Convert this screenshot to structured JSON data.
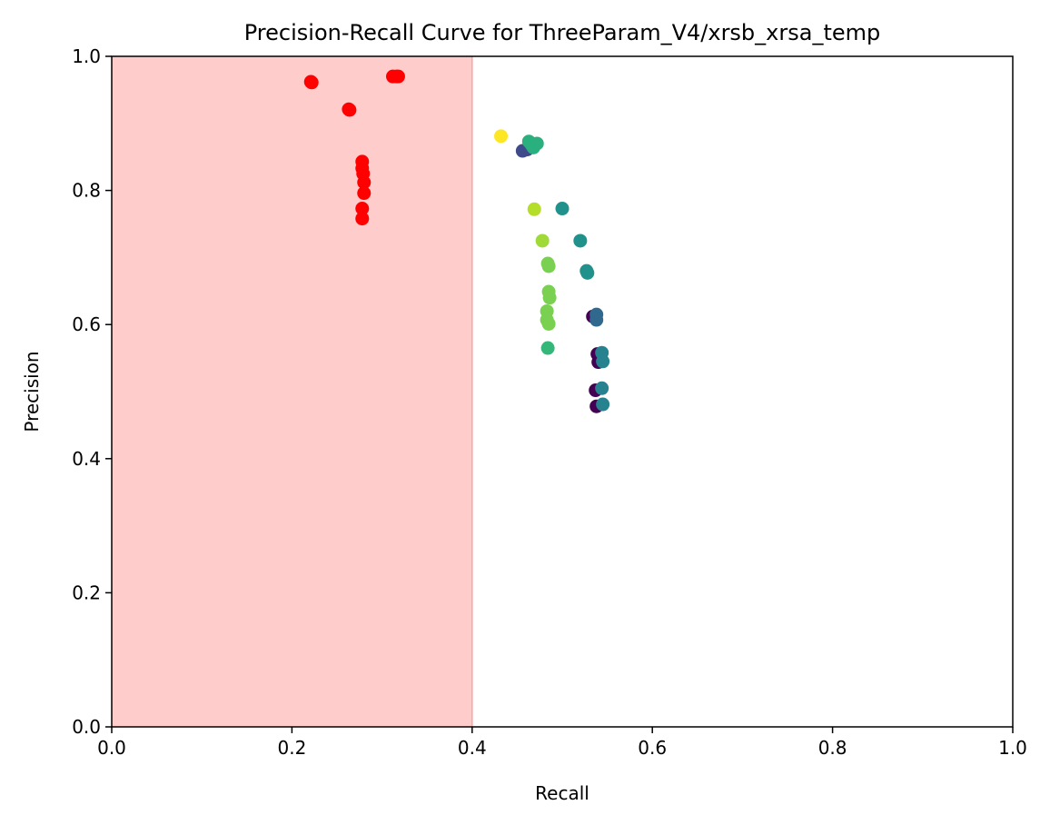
{
  "chart_data": {
    "type": "scatter",
    "title": "Precision-Recall Curve for ThreeParam_V4/xrsb_xrsa_temp",
    "xlabel": "Recall",
    "ylabel": "Precision",
    "xlim": [
      0.0,
      1.0
    ],
    "ylim": [
      0.0,
      1.0
    ],
    "xticks": [
      "0.0",
      "0.2",
      "0.4",
      "0.6",
      "0.8",
      "1.0"
    ],
    "yticks": [
      "0.0",
      "0.2",
      "0.4",
      "0.6",
      "0.8",
      "1.0"
    ],
    "grid": false,
    "shaded_region": {
      "x": [
        0.0,
        0.4
      ],
      "color": "#ffcccc",
      "edge_color": "#f4a6a6"
    },
    "series": [
      {
        "color": "#ff0000",
        "points": [
          [
            0.221,
            0.962
          ],
          [
            0.222,
            0.961
          ],
          [
            0.263,
            0.921
          ],
          [
            0.264,
            0.92
          ],
          [
            0.312,
            0.97
          ],
          [
            0.316,
            0.97
          ],
          [
            0.318,
            0.97
          ],
          [
            0.278,
            0.843
          ],
          [
            0.278,
            0.833
          ],
          [
            0.279,
            0.825
          ],
          [
            0.28,
            0.812
          ],
          [
            0.28,
            0.796
          ],
          [
            0.278,
            0.773
          ],
          [
            0.278,
            0.758
          ]
        ]
      },
      {
        "color": "#fde725",
        "points": [
          [
            0.432,
            0.881
          ]
        ]
      },
      {
        "color": "#3e4a89",
        "points": [
          [
            0.456,
            0.859
          ],
          [
            0.461,
            0.861
          ]
        ]
      },
      {
        "color": "#2ab07f",
        "points": [
          [
            0.463,
            0.873
          ],
          [
            0.468,
            0.864
          ],
          [
            0.472,
            0.87
          ],
          [
            0.466,
            0.868
          ]
        ]
      },
      {
        "color": "#b5de2b",
        "points": [
          [
            0.469,
            0.772
          ]
        ]
      },
      {
        "color": "#21918c",
        "points": [
          [
            0.5,
            0.773
          ],
          [
            0.52,
            0.725
          ],
          [
            0.527,
            0.68
          ],
          [
            0.528,
            0.677
          ]
        ]
      },
      {
        "color": "#a0da39",
        "points": [
          [
            0.478,
            0.725
          ]
        ]
      },
      {
        "color": "#7ad151",
        "points": [
          [
            0.484,
            0.691
          ],
          [
            0.485,
            0.687
          ],
          [
            0.485,
            0.649
          ],
          [
            0.486,
            0.64
          ],
          [
            0.483,
            0.62
          ],
          [
            0.483,
            0.607
          ],
          [
            0.485,
            0.601
          ]
        ]
      },
      {
        "color": "#35b779",
        "points": [
          [
            0.484,
            0.565
          ]
        ]
      },
      {
        "color": "#440154",
        "points": [
          [
            0.534,
            0.612
          ],
          [
            0.539,
            0.556
          ],
          [
            0.54,
            0.544
          ],
          [
            0.537,
            0.502
          ],
          [
            0.538,
            0.478
          ]
        ]
      },
      {
        "color": "#31688e",
        "points": [
          [
            0.538,
            0.615
          ],
          [
            0.538,
            0.607
          ]
        ]
      },
      {
        "color": "#26828e",
        "points": [
          [
            0.544,
            0.558
          ],
          [
            0.545,
            0.545
          ],
          [
            0.544,
            0.505
          ],
          [
            0.545,
            0.481
          ]
        ]
      }
    ]
  }
}
